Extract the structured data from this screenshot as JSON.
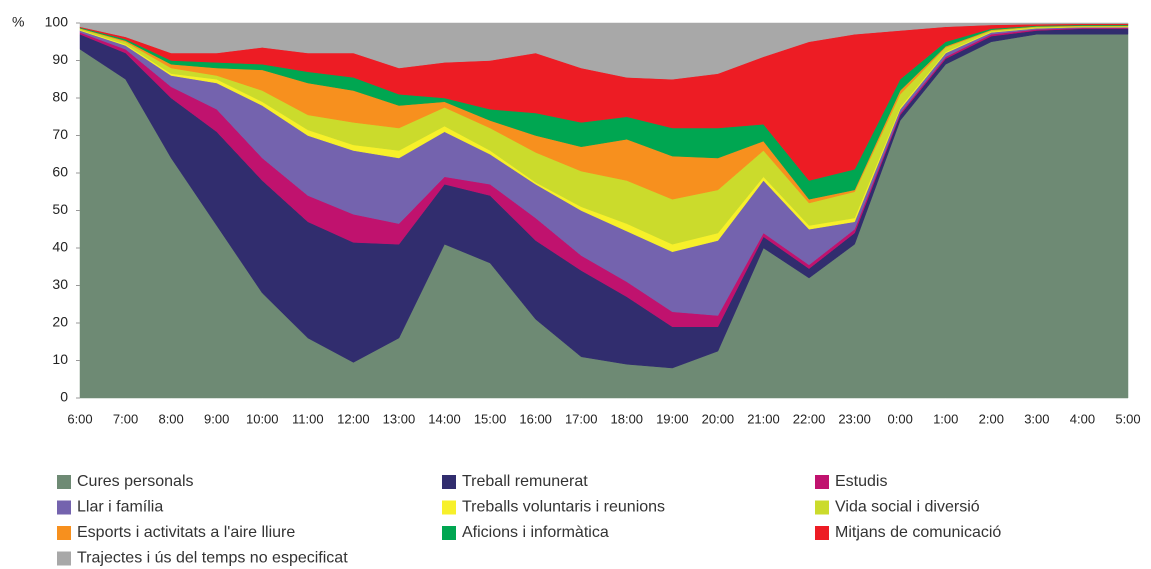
{
  "chart_data": {
    "type": "stacked_area",
    "y_label": "%",
    "categories": [
      "6:00",
      "7:00",
      "8:00",
      "9:00",
      "10:00",
      "11:00",
      "12:00",
      "13:00",
      "14:00",
      "15:00",
      "16:00",
      "17:00",
      "18:00",
      "19:00",
      "20:00",
      "21:00",
      "22:00",
      "23:00",
      "0:00",
      "1:00",
      "2:00",
      "3:00",
      "4:00",
      "5:00"
    ],
    "ylim": [
      0,
      100
    ],
    "yticks": [
      0,
      10,
      20,
      30,
      40,
      50,
      60,
      70,
      80,
      90,
      100
    ],
    "grid": false,
    "series": [
      {
        "name": "Cures personals",
        "color": "#6e8a74",
        "values": [
          93,
          85,
          64,
          46,
          28,
          16,
          9.5,
          16,
          41,
          36,
          21,
          11,
          9,
          8,
          12.5,
          40,
          32,
          41,
          74,
          89,
          95,
          97,
          97,
          97
        ]
      },
      {
        "name": "Treball remunerat",
        "color": "#312d6e",
        "values": [
          4,
          7,
          16,
          25,
          30,
          31,
          32,
          25,
          16,
          18,
          21,
          23,
          18,
          11,
          6.5,
          3,
          2.5,
          3,
          1.5,
          1.5,
          1.5,
          1,
          1.5,
          1.5
        ]
      },
      {
        "name": "Estudis",
        "color": "#c0126e",
        "values": [
          0.5,
          1,
          3,
          6,
          6,
          7,
          7.5,
          5.5,
          2,
          3,
          6,
          4,
          4,
          4,
          3,
          1,
          1,
          1,
          0.5,
          0.5,
          0.5,
          0.3,
          0.2,
          0.2
        ]
      },
      {
        "name": "Llar i família",
        "color": "#7463ae",
        "values": [
          0.5,
          1,
          3,
          7,
          14,
          16,
          17,
          17.5,
          12,
          8,
          9,
          12,
          13.5,
          16,
          20,
          14,
          9.5,
          2,
          1,
          1,
          0.5,
          0.3,
          0.2,
          0.2
        ]
      },
      {
        "name": "Treballs voluntaris i reunions",
        "color": "#f7f02a",
        "values": [
          0.2,
          0.3,
          0.5,
          1,
          1,
          1.5,
          1.5,
          2,
          1.5,
          1,
          0.5,
          1,
          2,
          2,
          2,
          1,
          1,
          1,
          0.5,
          0.3,
          0.2,
          0.1,
          0.1,
          0.1
        ]
      },
      {
        "name": "Vida social i diversió",
        "color": "#cbdb2c",
        "values": [
          0.3,
          0.7,
          1.5,
          1,
          3,
          4,
          6,
          6,
          5,
          6,
          8,
          9.5,
          11.5,
          12,
          11.5,
          7,
          6,
          7,
          3.5,
          1.2,
          0.3,
          0.3,
          0.2,
          0.2
        ]
      },
      {
        "name": "Esports i activitats a l'aire lliure",
        "color": "#f7901e",
        "values": [
          0.1,
          0.3,
          1,
          2,
          5.5,
          8.5,
          8.5,
          6,
          1.5,
          2,
          4.5,
          6.5,
          11,
          11.5,
          8.5,
          2.5,
          1,
          0.5,
          1,
          0.3,
          0.2,
          0.1,
          0.1,
          0.1
        ]
      },
      {
        "name": "Aficions i informàtica",
        "color": "#00a651",
        "values": [
          0.2,
          0.4,
          1,
          1.5,
          1.5,
          3,
          3.5,
          3,
          1,
          3,
          6,
          6.5,
          6,
          7.5,
          8,
          4.5,
          5,
          5.5,
          3,
          1.2,
          0.3,
          0.2,
          0.2,
          0.2
        ]
      },
      {
        "name": "Mitjans de comunicació",
        "color": "#ed1c24",
        "values": [
          0.2,
          0.6,
          2,
          2.5,
          4.5,
          5,
          6.5,
          7,
          9.5,
          13,
          16,
          14.5,
          10.5,
          13,
          14.5,
          18,
          37,
          36,
          13,
          4,
          1,
          0.4,
          0.3,
          0.3
        ]
      },
      {
        "name": "Trajectes i ús del temps no especificat",
        "color": "#a8a8a8",
        "values": [
          1,
          3.7,
          8,
          8,
          6.5,
          8,
          8,
          12,
          10.5,
          10,
          8,
          12,
          14.5,
          15,
          13.5,
          9,
          5,
          3,
          2,
          1,
          0.5,
          0.3,
          0.2,
          0.2
        ]
      }
    ]
  }
}
